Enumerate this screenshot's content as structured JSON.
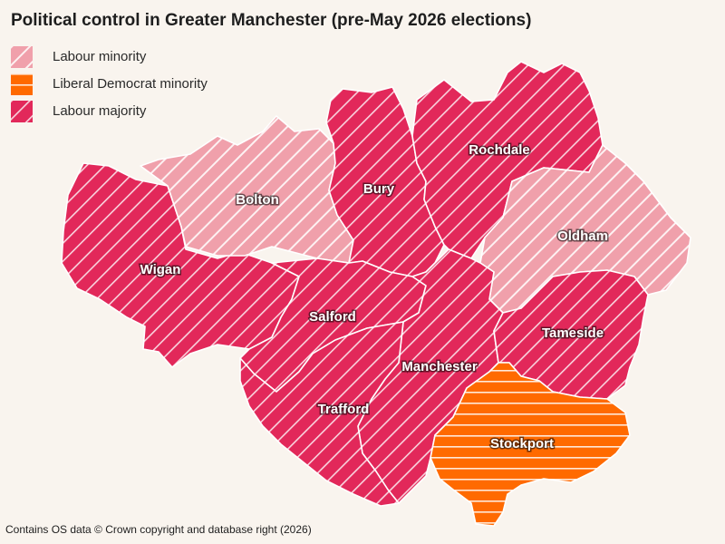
{
  "title": "Political control in Greater Manchester (pre-May 2026 elections)",
  "legend": [
    {
      "label": "Labour minority",
      "color": "#f0a0ab",
      "pattern": "diagonal"
    },
    {
      "label": "Liberal Democrat minority",
      "color": "#ff6a00",
      "pattern": "horizontal"
    },
    {
      "label": "Labour majority",
      "color": "#e2285a",
      "pattern": "diagonal"
    }
  ],
  "regions": [
    {
      "name": "Bolton",
      "control": "Labour minority"
    },
    {
      "name": "Bury",
      "control": "Labour majority"
    },
    {
      "name": "Rochdale",
      "control": "Labour majority"
    },
    {
      "name": "Oldham",
      "control": "Labour minority"
    },
    {
      "name": "Wigan",
      "control": "Labour majority"
    },
    {
      "name": "Salford",
      "control": "Labour majority"
    },
    {
      "name": "Tameside",
      "control": "Labour majority"
    },
    {
      "name": "Manchester",
      "control": "Labour majority"
    },
    {
      "name": "Trafford",
      "control": "Labour majority"
    },
    {
      "name": "Stockport",
      "control": "Liberal Democrat minority"
    }
  ],
  "source": "Contains OS data © Crown copyright and database right (2026)"
}
